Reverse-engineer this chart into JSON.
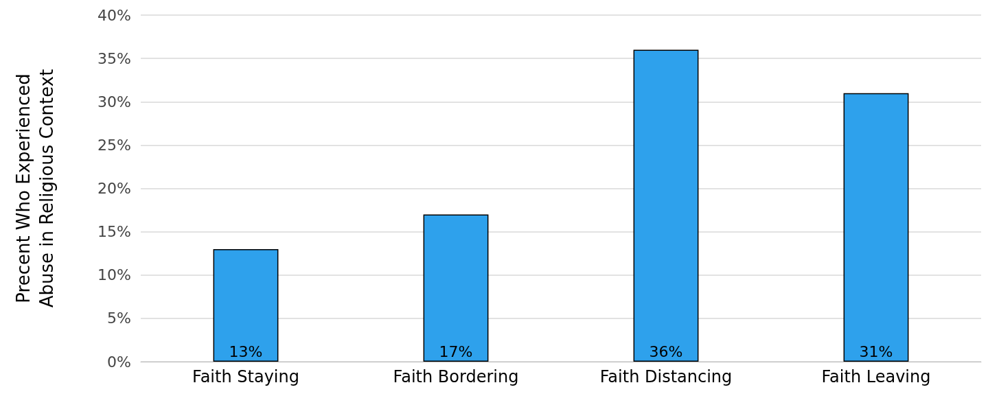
{
  "chart_data": {
    "type": "bar",
    "ylabel": "Precent Who Experienced\nAbuse in Religious Context",
    "categories": [
      "Faith Staying",
      "Faith Bordering",
      "Faith Distancing",
      "Faith Leaving"
    ],
    "values": [
      13,
      17,
      36,
      31
    ],
    "value_labels": [
      "13%",
      "17%",
      "36%",
      "31%"
    ],
    "color": "#2ea1ec",
    "ylim": [
      0,
      40
    ],
    "yticks": [
      {
        "value": 0,
        "label": "0%"
      },
      {
        "value": 5,
        "label": "5%"
      },
      {
        "value": 10,
        "label": "10%"
      },
      {
        "value": 15,
        "label": "15%"
      },
      {
        "value": 20,
        "label": "20%"
      },
      {
        "value": 25,
        "label": "25%"
      },
      {
        "value": 30,
        "label": "30%"
      },
      {
        "value": 35,
        "label": "35%"
      },
      {
        "value": 40,
        "label": "40%"
      }
    ],
    "grid": "y"
  }
}
